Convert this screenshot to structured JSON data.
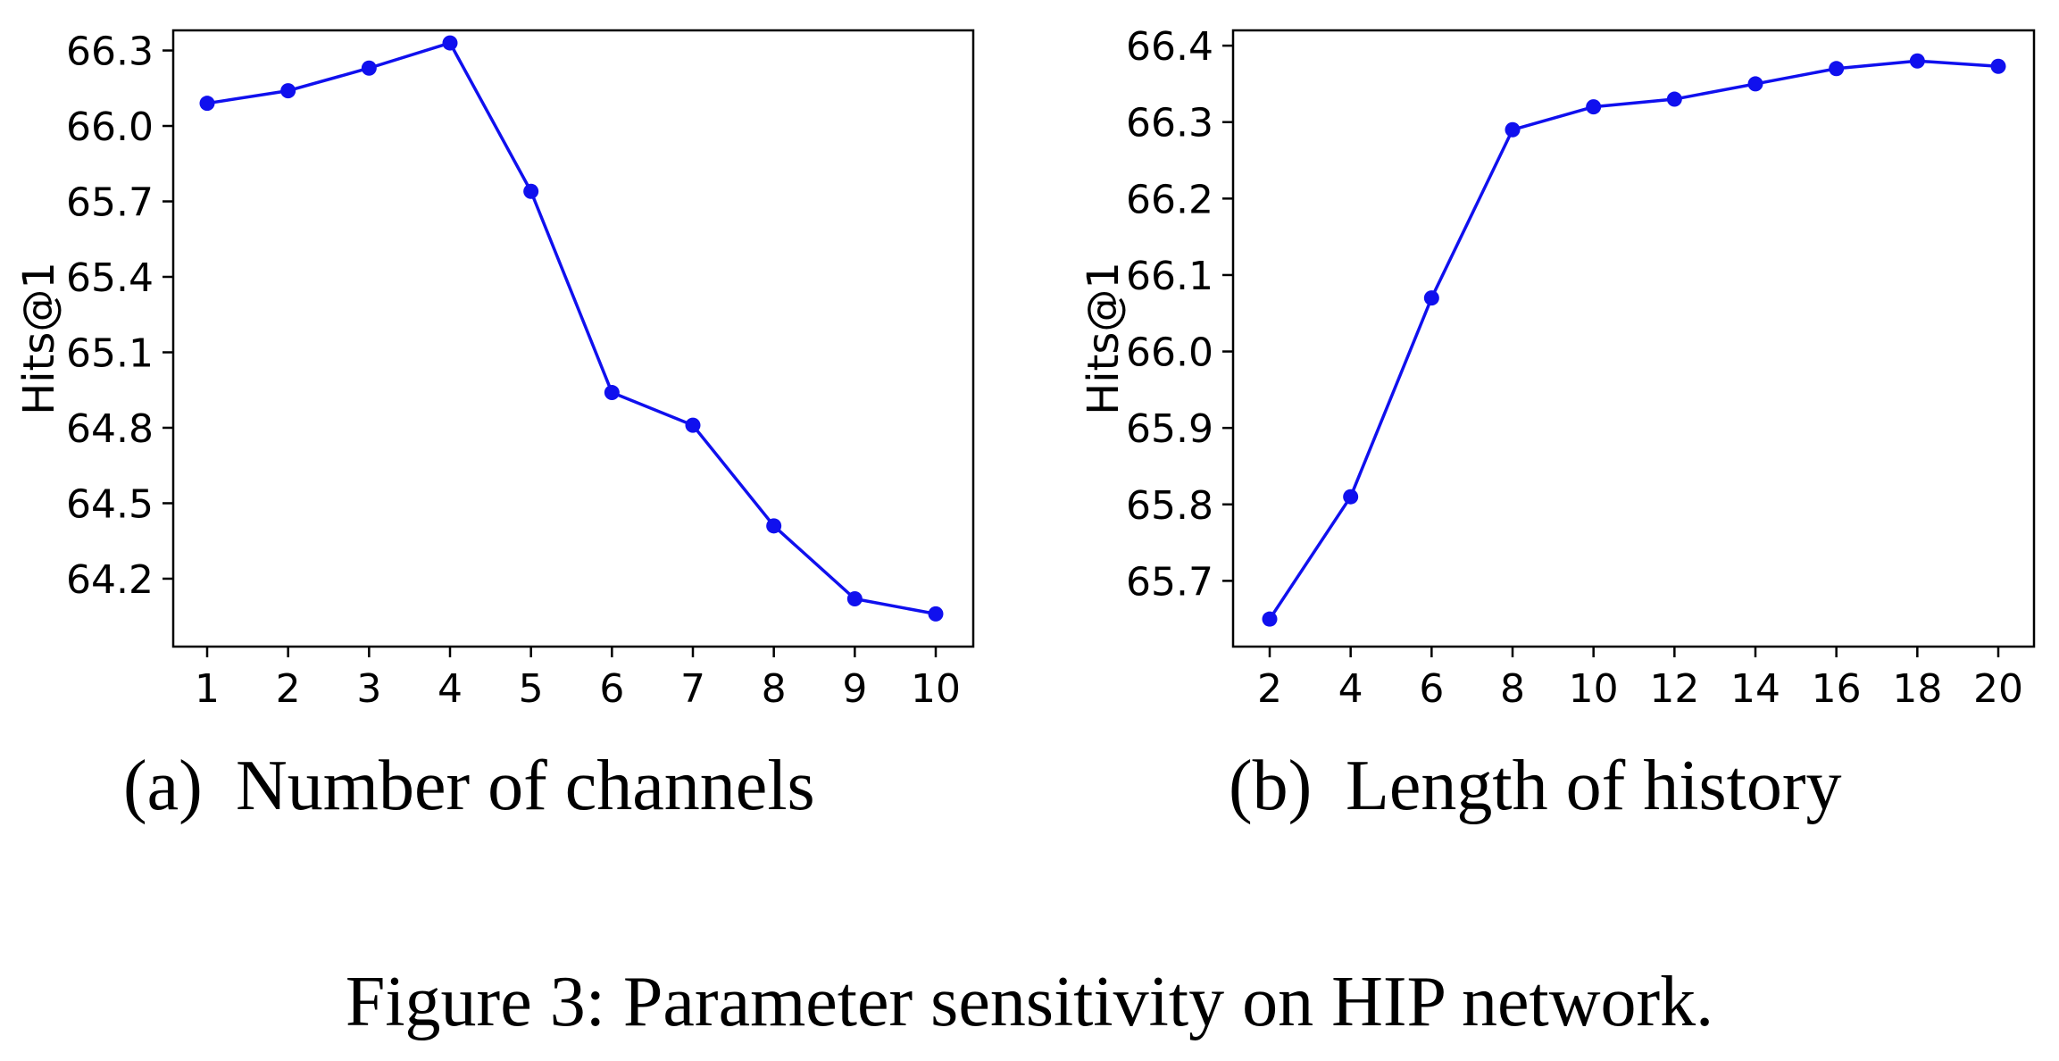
{
  "figure_caption": "Figure 3: Parameter sensitivity on HIP network.",
  "line_color": "#1010ee",
  "chart_data": [
    {
      "type": "line",
      "subcaption_tag": "(a)",
      "subcaption_text": "Number of channels",
      "xlabel": "",
      "ylabel": "Hits@1",
      "x": [
        1,
        2,
        3,
        4,
        5,
        6,
        7,
        8,
        9,
        10
      ],
      "xticks": [
        "1",
        "2",
        "3",
        "4",
        "5",
        "6",
        "7",
        "8",
        "9",
        "10"
      ],
      "yticks": [
        "64.2",
        "64.5",
        "64.8",
        "65.1",
        "65.4",
        "65.7",
        "66.0",
        "66.3"
      ],
      "ylim": [
        63.93,
        66.38
      ],
      "series": [
        {
          "values": [
            66.09,
            66.14,
            66.23,
            66.33,
            65.74,
            64.94,
            64.81,
            64.41,
            64.12,
            64.06
          ]
        }
      ],
      "grid": false,
      "legend": false
    },
    {
      "type": "line",
      "subcaption_tag": "(b)",
      "subcaption_text": "Length of history",
      "xlabel": "",
      "ylabel": "Hits@1",
      "x": [
        2,
        4,
        6,
        8,
        10,
        12,
        14,
        16,
        18,
        20
      ],
      "xticks": [
        "2",
        "4",
        "6",
        "8",
        "10",
        "12",
        "14",
        "16",
        "18",
        "20"
      ],
      "yticks": [
        "65.7",
        "65.8",
        "65.9",
        "66.0",
        "66.1",
        "66.2",
        "66.3",
        "66.4"
      ],
      "ylim": [
        65.614,
        66.42
      ],
      "series": [
        {
          "values": [
            65.65,
            65.81,
            66.07,
            66.29,
            66.32,
            66.33,
            66.35,
            66.37,
            66.38,
            66.373
          ]
        }
      ],
      "grid": false,
      "legend": false
    }
  ]
}
